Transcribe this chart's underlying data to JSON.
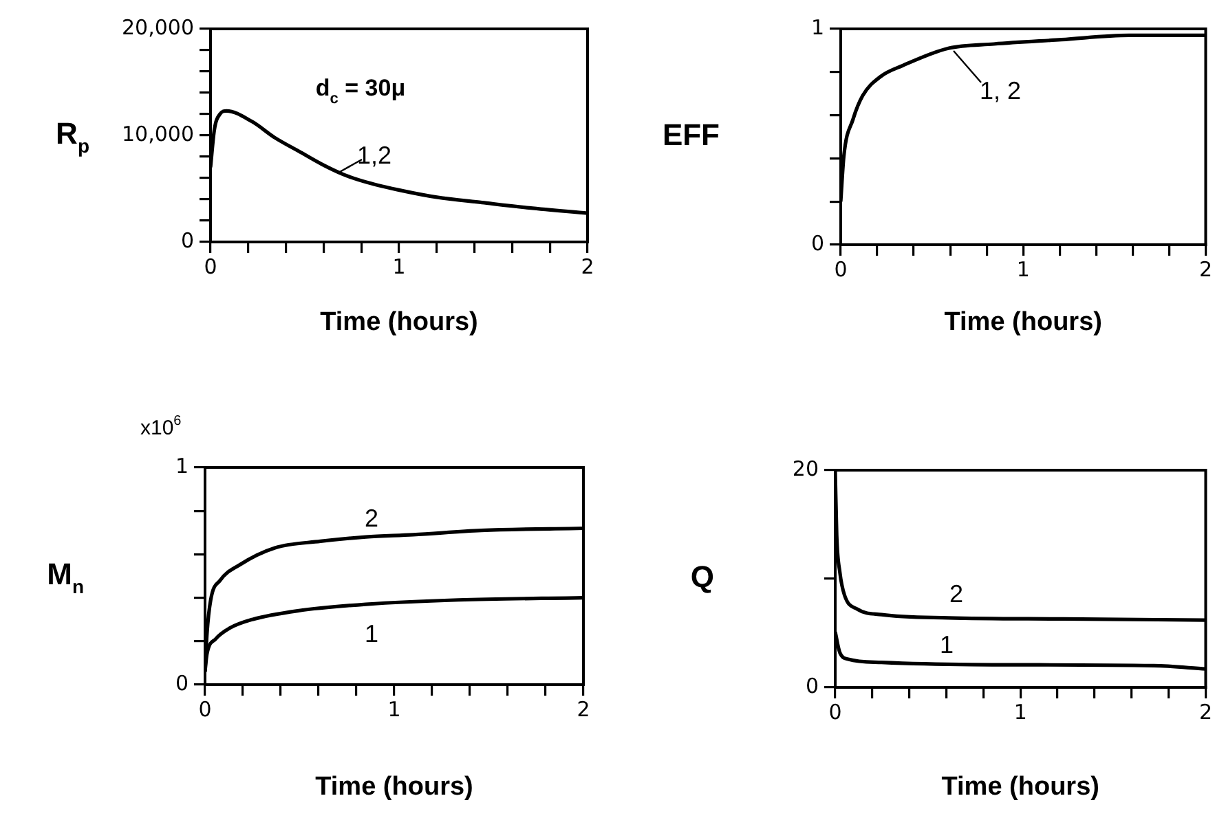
{
  "chart_data": [
    {
      "type": "line",
      "xlabel": "Time (hours)",
      "ylabel": "R$_{p}$",
      "annotations": [
        "d$_{c}$ = 30μ"
      ],
      "grid": false,
      "marker": "none",
      "line_style": "solid",
      "xlim": [
        0,
        2
      ],
      "xticks": [
        0,
        {
          "value": 0.2,
          "label": null
        },
        {
          "value": 0.4,
          "label": null
        },
        {
          "value": 0.6,
          "label": null
        },
        {
          "value": 0.8,
          "label": null
        },
        1,
        {
          "value": 1.2,
          "label": null
        },
        {
          "value": 1.4,
          "label": null
        },
        {
          "value": 1.6,
          "label": null
        },
        {
          "value": 1.8,
          "label": null
        },
        2
      ],
      "ylim": [
        0,
        20000
      ],
      "yticks": [
        0,
        {
          "value": 2000,
          "label": null
        },
        {
          "value": 4000,
          "label": null
        },
        {
          "value": 6000,
          "label": null
        },
        {
          "value": 8000,
          "label": null
        },
        {
          "value": 10000,
          "label": "10,000"
        },
        {
          "value": 12000,
          "label": null
        },
        {
          "value": 14000,
          "label": null
        },
        {
          "value": 16000,
          "label": null
        },
        {
          "value": 18000,
          "label": null
        },
        {
          "value": 20000,
          "label": "20,000"
        }
      ],
      "series": [
        {
          "name": "1,2",
          "color": "#000000",
          "x": [
            0,
            0.02,
            0.05,
            0.085,
            0.22,
            0.34,
            0.47,
            0.59,
            0.71,
            0.83,
            1.02,
            1.2,
            1.44,
            1.69,
            2
          ],
          "values": [
            7000,
            10500,
            12000,
            12300,
            11300,
            9800,
            8500,
            7300,
            6300,
            5600,
            4800,
            4200,
            3700,
            3200,
            2700
          ]
        }
      ]
    },
    {
      "type": "line",
      "xlabel": "Time (hours)",
      "ylabel": "EFF",
      "grid": false,
      "marker": "none",
      "line_style": "solid",
      "xlim": [
        0,
        2
      ],
      "xticks": [
        0,
        {
          "value": 0.2,
          "label": null
        },
        {
          "value": 0.4,
          "label": null
        },
        {
          "value": 0.6,
          "label": null
        },
        {
          "value": 0.8,
          "label": null
        },
        1,
        {
          "value": 1.2,
          "label": null
        },
        {
          "value": 1.4,
          "label": null
        },
        {
          "value": 1.6,
          "label": null
        },
        {
          "value": 1.8,
          "label": null
        },
        2
      ],
      "ylim": [
        0,
        1
      ],
      "yticks": [
        0,
        {
          "value": 0.2,
          "label": null
        },
        {
          "value": 0.4,
          "label": null
        },
        {
          "value": 0.6,
          "label": null
        },
        {
          "value": 0.8,
          "label": null
        },
        1
      ],
      "series": [
        {
          "name": "1, 2",
          "color": "#000000",
          "x": [
            0,
            0.017,
            0.067,
            0.12,
            0.22,
            0.34,
            0.59,
            0.84,
            1.21,
            1.58,
            2
          ],
          "values": [
            0.2,
            0.41,
            0.58,
            0.69,
            0.78,
            0.83,
            0.91,
            0.93,
            0.95,
            0.97,
            0.97
          ]
        }
      ]
    },
    {
      "type": "line",
      "xlabel": "Time (hours)",
      "ylabel": "M$_{n}$",
      "annotations": [
        "x10$^{6}$"
      ],
      "grid": false,
      "marker": "none",
      "line_style": "solid",
      "xlim": [
        0,
        2
      ],
      "xticks": [
        0,
        {
          "value": 0.2,
          "label": null
        },
        {
          "value": 0.4,
          "label": null
        },
        {
          "value": 0.6,
          "label": null
        },
        {
          "value": 0.8,
          "label": null
        },
        1,
        {
          "value": 1.2,
          "label": null
        },
        {
          "value": 1.4,
          "label": null
        },
        {
          "value": 1.6,
          "label": null
        },
        {
          "value": 1.8,
          "label": null
        },
        2
      ],
      "ylim": [
        0,
        1
      ],
      "yticks": [
        0,
        {
          "value": 0.2,
          "label": null
        },
        {
          "value": 0.4,
          "label": null
        },
        {
          "value": 0.6,
          "label": null
        },
        {
          "value": 0.8,
          "label": null
        },
        1
      ],
      "series": [
        {
          "name": "1",
          "color": "#000000",
          "x": [
            0,
            0.01,
            0.056,
            0.13,
            0.25,
            0.49,
            0.85,
            1.34,
            2
          ],
          "values": [
            0.06,
            0.14,
            0.21,
            0.26,
            0.3,
            0.34,
            0.37,
            0.39,
            0.4
          ]
        },
        {
          "name": "2",
          "color": "#000000",
          "x": [
            0,
            0.01,
            0.03,
            0.08,
            0.18,
            0.37,
            0.61,
            0.85,
            1.1,
            1.46,
            2
          ],
          "values": [
            0.06,
            0.23,
            0.39,
            0.48,
            0.55,
            0.63,
            0.66,
            0.68,
            0.69,
            0.71,
            0.72
          ]
        }
      ]
    },
    {
      "type": "line",
      "xlabel": "Time (hours)",
      "ylabel": "Q",
      "grid": false,
      "marker": "none",
      "line_style": "solid",
      "xlim": [
        0,
        2
      ],
      "xticks": [
        0,
        {
          "value": 0.2,
          "label": null
        },
        {
          "value": 0.4,
          "label": null
        },
        {
          "value": 0.6,
          "label": null
        },
        {
          "value": 0.8,
          "label": null
        },
        1,
        {
          "value": 1.2,
          "label": null
        },
        {
          "value": 1.4,
          "label": null
        },
        {
          "value": 1.6,
          "label": null
        },
        {
          "value": 1.8,
          "label": null
        },
        2
      ],
      "ylim": [
        0,
        20
      ],
      "yticks": [
        0,
        {
          "value": 10,
          "label": null
        },
        20
      ],
      "series": [
        {
          "name": "1",
          "color": "#000000",
          "x": [
            0,
            0.025,
            0.07,
            0.25,
            0.74,
            1.72,
            2
          ],
          "values": [
            5.1,
            3.2,
            2.6,
            2.3,
            2.1,
            2,
            1.7
          ]
        },
        {
          "name": "2",
          "color": "#000000",
          "x": [
            0,
            0.008,
            0.025,
            0.05,
            0.12,
            0.25,
            0.61,
            1.23,
            2
          ],
          "values": [
            19.9,
            14,
            10.6,
            8.5,
            7.2,
            6.7,
            6.4,
            6.3,
            6.2
          ]
        }
      ]
    }
  ]
}
